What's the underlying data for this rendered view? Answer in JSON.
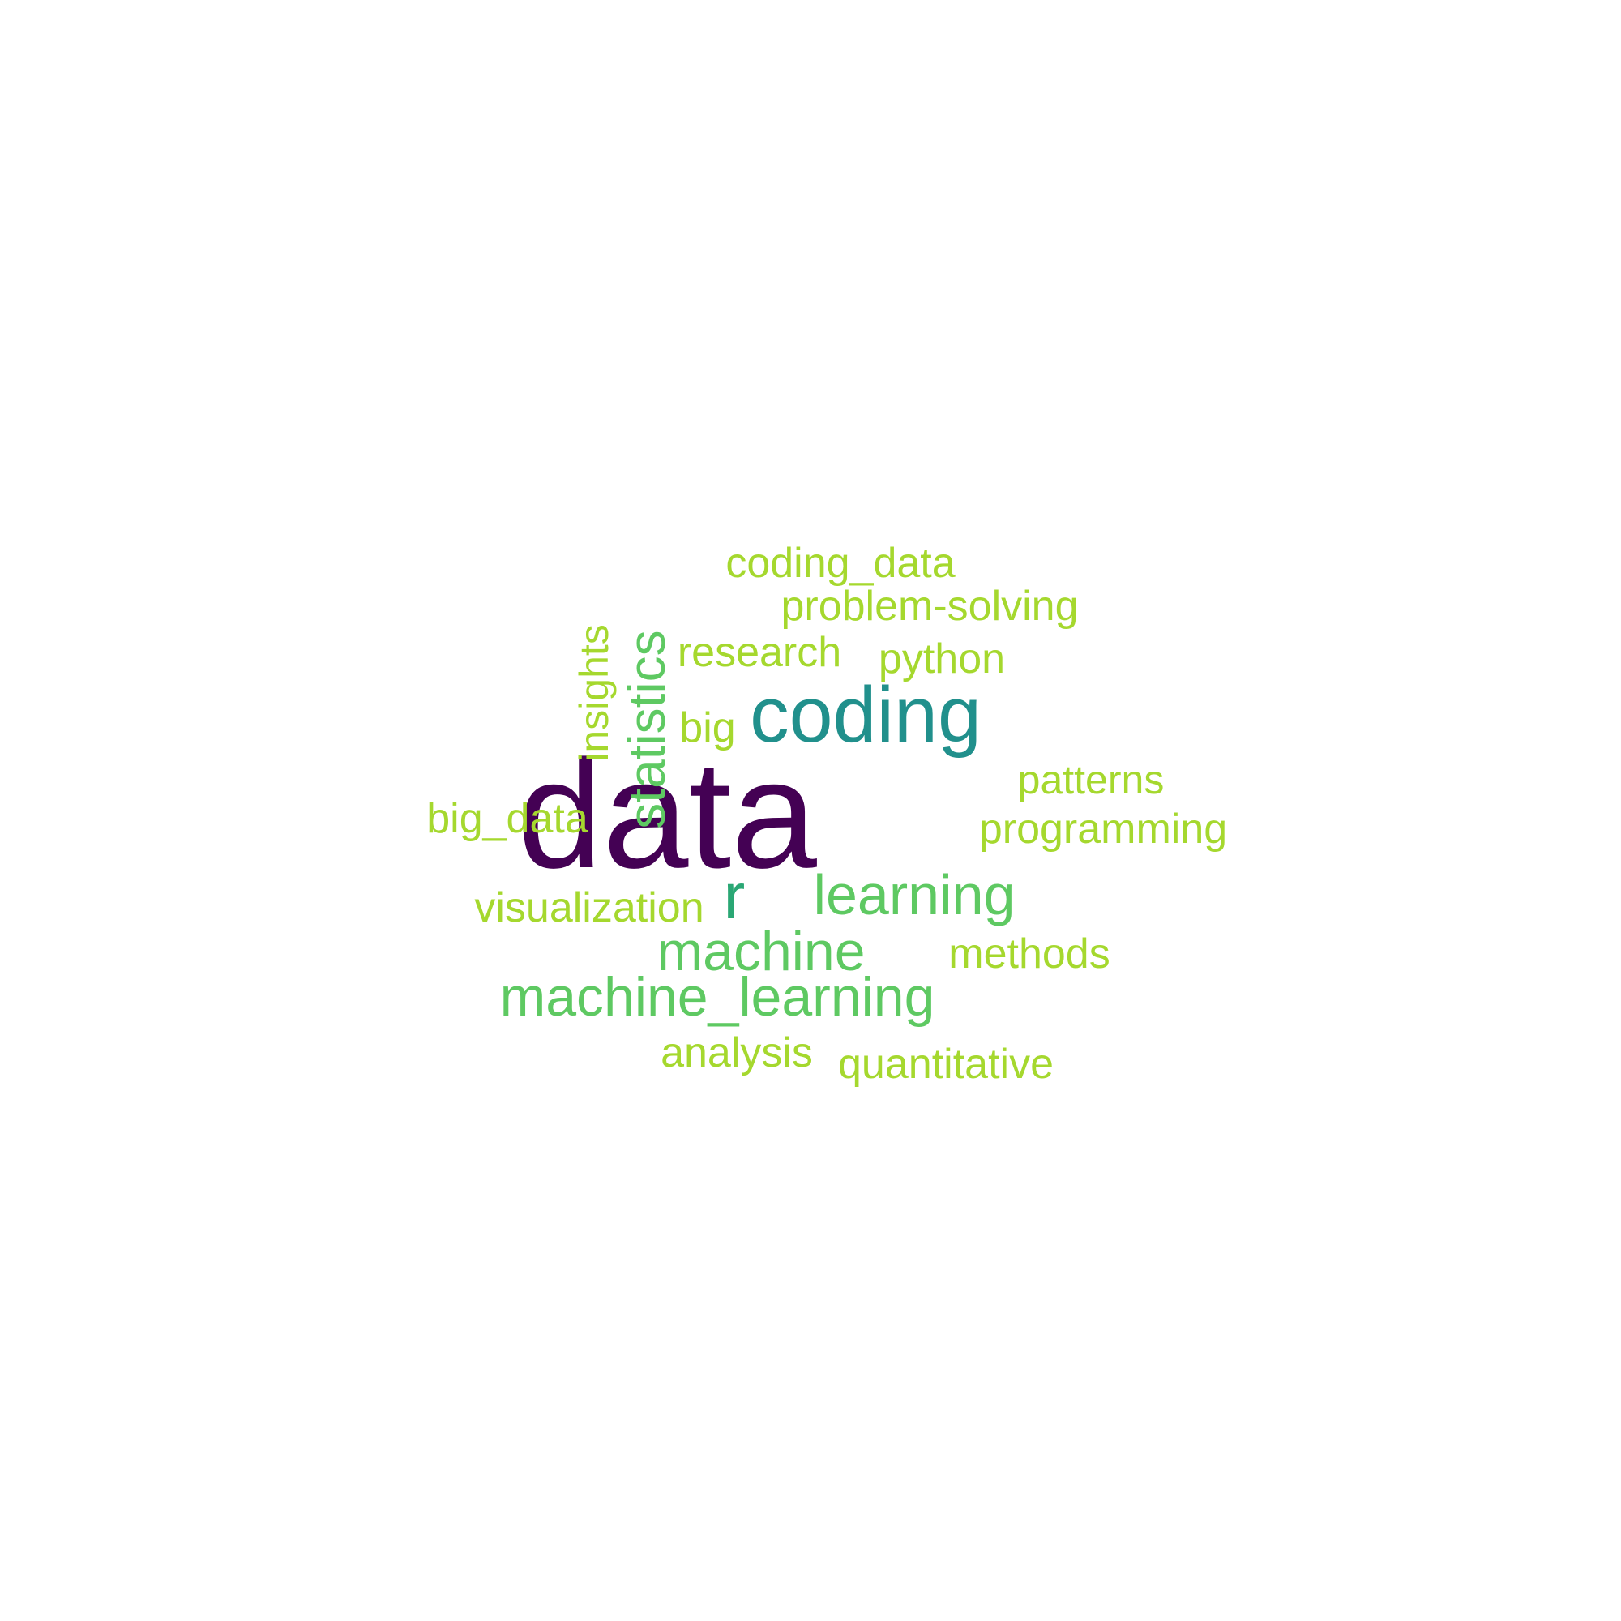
{
  "words": [
    {
      "text": "data",
      "color": "#440154"
    },
    {
      "text": "coding",
      "color": "#21908c"
    },
    {
      "text": "r",
      "color": "#2aa774"
    },
    {
      "text": "statistics",
      "color": "#5ec962"
    },
    {
      "text": "learning",
      "color": "#5ec962"
    },
    {
      "text": "machine",
      "color": "#5ec962"
    },
    {
      "text": "machine_learning",
      "color": "#5ec962"
    },
    {
      "text": "coding_data",
      "color": "#a5d82e"
    },
    {
      "text": "problem-solving",
      "color": "#a5d82e"
    },
    {
      "text": "research",
      "color": "#a5d82e"
    },
    {
      "text": "python",
      "color": "#a5d82e"
    },
    {
      "text": "insights",
      "color": "#a5d82e"
    },
    {
      "text": "big",
      "color": "#a5d82e"
    },
    {
      "text": "patterns",
      "color": "#a5d82e"
    },
    {
      "text": "big_data",
      "color": "#a5d82e"
    },
    {
      "text": "programming",
      "color": "#a5d82e"
    },
    {
      "text": "visualization",
      "color": "#a5d82e"
    },
    {
      "text": "methods",
      "color": "#a5d82e"
    },
    {
      "text": "analysis",
      "color": "#a5d82e"
    },
    {
      "text": "quantitative",
      "color": "#a5d82e"
    }
  ]
}
